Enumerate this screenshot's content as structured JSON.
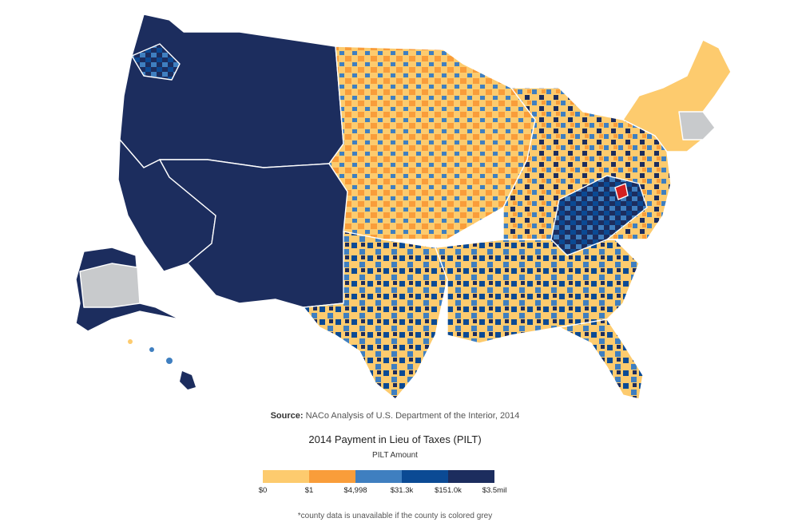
{
  "source": {
    "label": "Source:",
    "text": "NACo Analysis of U.S. Department of the Interior, 2014"
  },
  "legend": {
    "title": "2014 Payment in Lieu of Taxes (PILT)",
    "subtitle": "PILT Amount",
    "ticks": [
      "$0",
      "$1",
      "$4,998",
      "$31.3k",
      "$151.0k",
      "$3.5mil"
    ],
    "colors": [
      "#fdcb6e",
      "#f99d3a",
      "#3f7fc0",
      "#0b4a94",
      "#1c2d5e"
    ]
  },
  "note": "*county data is unavailable if the county is colored grey",
  "palette": {
    "zero": "#fdcb6e",
    "low": "#f99d3a",
    "mid": "#3f7fc0",
    "high": "#0b4a94",
    "top": "#1c2d5e",
    "unavailable": "#c8cacc",
    "highlight": "#d42020"
  }
}
